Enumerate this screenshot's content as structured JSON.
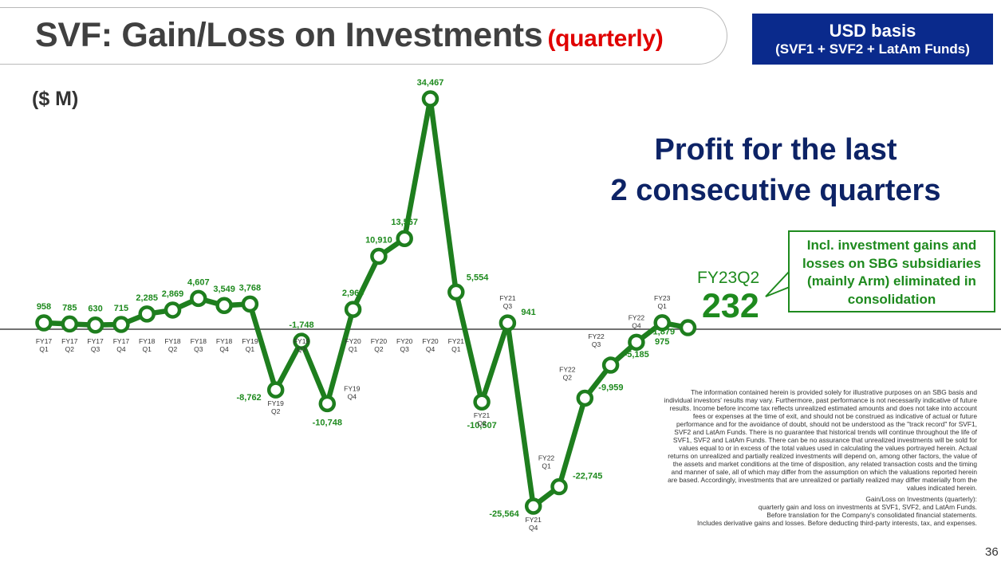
{
  "header": {
    "title": "SVF: Gain/Loss on Investments",
    "title_suffix": "(quarterly)",
    "basis_line1": "USD basis",
    "basis_line2": "(SVF1 + SVF2 + LatAm Funds)"
  },
  "unit_label": "($ M)",
  "headline": {
    "line1": "Profit for the last",
    "line2": "2 consecutive quarters"
  },
  "callout": {
    "text": "Incl. investment gains and losses on SBG subsidiaries (mainly Arm) eliminated in consolidation"
  },
  "highlight": {
    "label": "FY23Q2",
    "value": "232"
  },
  "chart_data": {
    "type": "line",
    "title": "",
    "xlabel": "",
    "ylabel": "($ M)",
    "series": [
      {
        "color": "#1e7e1e",
        "x": [
          "FY17 Q1",
          "FY17 Q2",
          "FY17 Q3",
          "FY17 Q4",
          "FY18 Q1",
          "FY18 Q2",
          "FY18 Q3",
          "FY18 Q4",
          "FY19 Q1",
          "FY19 Q2",
          "FY19 Q3",
          "FY19 Q4",
          "FY20 Q1",
          "FY20 Q2",
          "FY20 Q3",
          "FY20 Q4",
          "FY21 Q1",
          "FY21 Q2",
          "FY21 Q3",
          "FY21 Q4",
          "FY22 Q1",
          "FY22 Q2",
          "FY22 Q3",
          "FY22 Q4",
          "FY23 Q1",
          "FY23 Q2"
        ],
        "values": [
          958,
          785,
          630,
          715,
          2285,
          2869,
          4607,
          3549,
          3768,
          -8762,
          -1748,
          -10748,
          2969,
          10910,
          13567,
          34467,
          5554,
          -10507,
          941,
          -25564,
          -22745,
          -9959,
          -5185,
          -1879,
          975,
          232
        ],
        "data_labels": [
          "958",
          "785",
          "630",
          "715",
          "2,285",
          "2,869",
          "4,607",
          "3,549",
          "3,768",
          "-8,762",
          "-1,748",
          "-10,748",
          "2,969",
          "10,910",
          "13,567",
          "34,467",
          "5,554",
          "-10,507",
          "941",
          "-25,564",
          "-22,745",
          "-9,959",
          "-5,185",
          "-1,879",
          "975",
          ""
        ]
      }
    ],
    "tick_labels": [
      [
        "FY17",
        "Q1"
      ],
      [
        "FY17",
        "Q2"
      ],
      [
        "FY17",
        "Q3"
      ],
      [
        "FY17",
        "Q4"
      ],
      [
        "FY18",
        "Q1"
      ],
      [
        "FY18",
        "Q2"
      ],
      [
        "FY18",
        "Q3"
      ],
      [
        "FY18",
        "Q4"
      ],
      [
        "FY19",
        "Q1"
      ],
      [
        "FY19",
        "Q2"
      ],
      [
        "FY19",
        "Q3"
      ],
      [
        "FY19",
        "Q4"
      ],
      [
        "FY20",
        "Q1"
      ],
      [
        "FY20",
        "Q2"
      ],
      [
        "FY20",
        "Q3"
      ],
      [
        "FY20",
        "Q4"
      ],
      [
        "FY21",
        "Q1"
      ],
      [
        "FY21",
        "Q2"
      ],
      [
        "FY21",
        "Q3"
      ],
      [
        "FY21",
        "Q4"
      ],
      [
        "FY22",
        "Q1"
      ],
      [
        "FY22",
        "Q2"
      ],
      [
        "FY22",
        "Q3"
      ],
      [
        "FY22",
        "Q4"
      ],
      [
        "FY23",
        "Q1"
      ],
      [
        "",
        ""
      ]
    ],
    "ylim": [
      -25564,
      34467
    ],
    "zero_line": true,
    "grid": false,
    "legend": "none"
  },
  "disclaimer": {
    "main": "The information contained herein is provided solely for illustrative purposes on an SBG basis and individual investors' results may vary. Furthermore, past performance is not necessarily indicative of future results. Income before income tax reflects unrealized estimated amounts and does not take into account fees or expenses at the time of exit, and should not be construed as indicative of actual or future performance and for the avoidance of doubt, should not be understood as the \"track record\" for SVF1, SVF2 and LatAm Funds. There is no guarantee that historical trends will continue throughout the life of SVF1, SVF2 and LatAm Funds. There can be no assurance that unrealized investments will be sold for values equal to or in excess of the total values used in calculating the values portrayed herein. Actual returns on unrealized and partially realized investments will depend on, among other factors, the value of the assets and market conditions at the time of disposition, any related transaction costs and the timing and manner of sale, all of which may differ from the assumption on which the valuations reported herein are based. Accordingly, investments that are unrealized or partially realized may differ materially from the values indicated herein.",
    "def1": "Gain/Loss on Investments (quarterly):",
    "def2": "quarterly gain and loss on investments at SVF1, SVF2, and LatAm Funds.",
    "def3": "Before translation for the Company's consolidated financial statements.",
    "def4": "Includes derivative gains and losses. Before deducting third-party interests, tax, and expenses."
  },
  "page_number": "36"
}
